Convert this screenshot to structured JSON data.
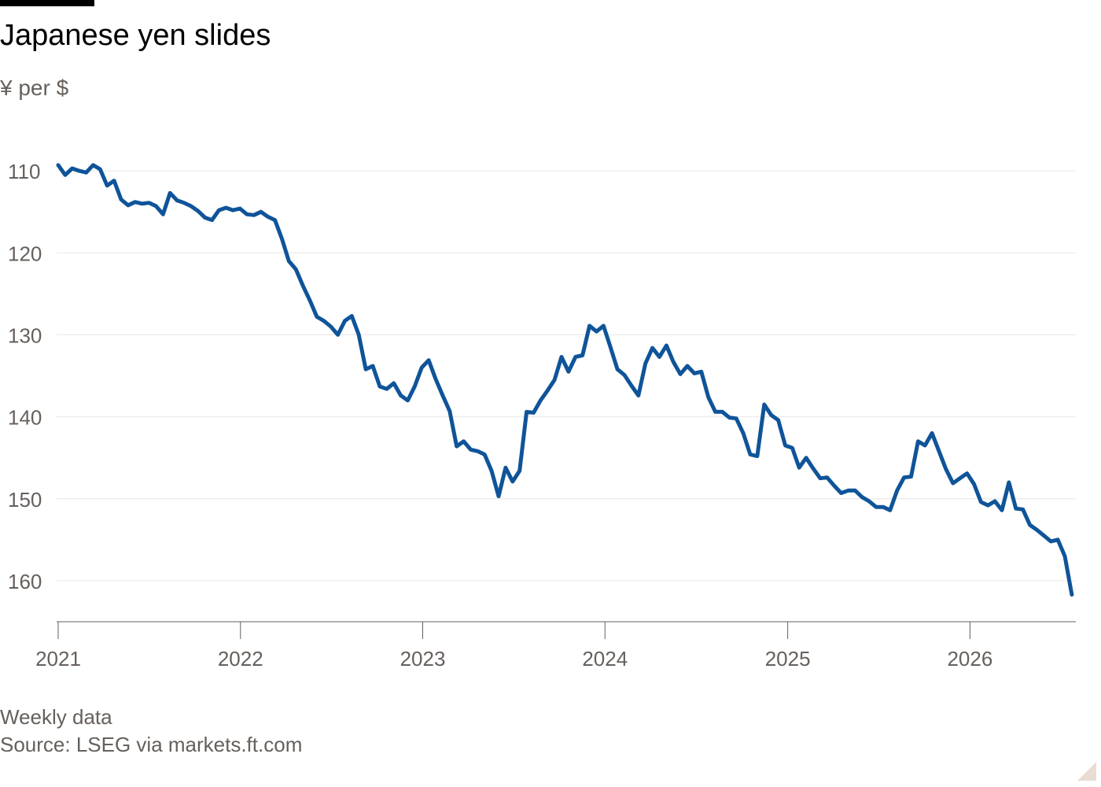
{
  "header": {
    "title": "Japanese yen slides",
    "subtitle": "¥ per $"
  },
  "footer": {
    "note": "Weekly data",
    "source": "Source: LSEG via markets.ft.com"
  },
  "colors": {
    "line": "#0f5499",
    "grid": "#e8e6e4",
    "axis_text": "#66605c",
    "baseline": "#66605c"
  },
  "chart_data": {
    "type": "line",
    "title": "Japanese yen slides",
    "ylabel": "¥ per $",
    "y_inverted": true,
    "ylim": [
      165,
      105
    ],
    "yticks": [
      110,
      120,
      130,
      140,
      150,
      160
    ],
    "xlim": [
      "2021-01-01",
      "2026-08-01"
    ],
    "xticks": [
      {
        "date": "2021-01-01",
        "label": "2021"
      },
      {
        "date": "2022-01-01",
        "label": "2022"
      },
      {
        "date": "2023-01-01",
        "label": "2023"
      },
      {
        "date": "2024-01-01",
        "label": "2024"
      },
      {
        "date": "2025-01-01",
        "label": "2025"
      },
      {
        "date": "2026-01-01",
        "label": "2026"
      }
    ],
    "grid": true,
    "legend": "none",
    "series": [
      {
        "points": [
          [
            "2021-01-01",
            109.3
          ],
          [
            "2021-01-15",
            110.5
          ],
          [
            "2021-01-29",
            109.7
          ],
          [
            "2021-02-12",
            110.0
          ],
          [
            "2021-02-26",
            110.2
          ],
          [
            "2021-03-12",
            109.3
          ],
          [
            "2021-03-26",
            109.8
          ],
          [
            "2021-04-09",
            111.8
          ],
          [
            "2021-04-23",
            111.2
          ],
          [
            "2021-05-07",
            113.5
          ],
          [
            "2021-05-21",
            114.2
          ],
          [
            "2021-06-04",
            113.8
          ],
          [
            "2021-06-18",
            114.0
          ],
          [
            "2021-07-02",
            113.9
          ],
          [
            "2021-07-16",
            114.3
          ],
          [
            "2021-07-30",
            115.3
          ],
          [
            "2021-08-13",
            112.7
          ],
          [
            "2021-08-27",
            113.6
          ],
          [
            "2021-09-10",
            113.9
          ],
          [
            "2021-09-24",
            114.3
          ],
          [
            "2021-10-08",
            114.9
          ],
          [
            "2021-10-22",
            115.7
          ],
          [
            "2021-11-05",
            116.0
          ],
          [
            "2021-11-19",
            114.8
          ],
          [
            "2021-12-03",
            114.5
          ],
          [
            "2021-12-17",
            114.8
          ],
          [
            "2021-12-31",
            114.6
          ],
          [
            "2022-01-14",
            115.3
          ],
          [
            "2022-01-28",
            115.4
          ],
          [
            "2022-02-11",
            115.0
          ],
          [
            "2022-02-25",
            115.6
          ],
          [
            "2022-03-11",
            116.0
          ],
          [
            "2022-03-25",
            118.3
          ],
          [
            "2022-04-08",
            121.0
          ],
          [
            "2022-04-22",
            122.0
          ],
          [
            "2022-05-06",
            124.0
          ],
          [
            "2022-05-20",
            125.8
          ],
          [
            "2022-06-03",
            127.8
          ],
          [
            "2022-06-17",
            128.3
          ],
          [
            "2022-07-01",
            129.0
          ],
          [
            "2022-07-15",
            130.0
          ],
          [
            "2022-07-29",
            128.3
          ],
          [
            "2022-08-12",
            127.7
          ],
          [
            "2022-08-26",
            130.0
          ],
          [
            "2022-09-09",
            134.2
          ],
          [
            "2022-09-23",
            133.8
          ],
          [
            "2022-10-07",
            136.3
          ],
          [
            "2022-10-21",
            136.6
          ],
          [
            "2022-11-04",
            135.9
          ],
          [
            "2022-11-18",
            137.4
          ],
          [
            "2022-12-02",
            138.0
          ],
          [
            "2022-12-16",
            136.3
          ],
          [
            "2022-12-30",
            134.0
          ],
          [
            "2023-01-13",
            133.1
          ],
          [
            "2023-01-27",
            135.4
          ],
          [
            "2023-02-10",
            137.4
          ],
          [
            "2023-02-24",
            139.3
          ],
          [
            "2023-03-10",
            143.6
          ],
          [
            "2023-03-24",
            143.0
          ],
          [
            "2023-04-07",
            144.0
          ],
          [
            "2023-04-21",
            144.2
          ],
          [
            "2023-05-05",
            144.6
          ],
          [
            "2023-05-19",
            146.6
          ],
          [
            "2023-06-02",
            149.7
          ],
          [
            "2023-06-16",
            146.2
          ],
          [
            "2023-06-30",
            147.9
          ],
          [
            "2023-07-14",
            146.6
          ],
          [
            "2023-07-28",
            139.4
          ],
          [
            "2023-08-11",
            139.5
          ],
          [
            "2023-08-25",
            138.0
          ],
          [
            "2023-09-08",
            136.8
          ],
          [
            "2023-09-22",
            135.5
          ],
          [
            "2023-10-06",
            132.7
          ],
          [
            "2023-10-20",
            134.5
          ],
          [
            "2023-11-03",
            132.7
          ],
          [
            "2023-11-17",
            132.5
          ],
          [
            "2023-12-01",
            128.9
          ],
          [
            "2023-12-15",
            129.6
          ],
          [
            "2023-12-29",
            128.9
          ],
          [
            "2024-01-12",
            131.5
          ],
          [
            "2024-01-26",
            134.2
          ],
          [
            "2024-02-09",
            134.9
          ],
          [
            "2024-02-23",
            136.2
          ],
          [
            "2024-03-08",
            137.4
          ],
          [
            "2024-03-22",
            133.5
          ],
          [
            "2024-04-05",
            131.6
          ],
          [
            "2024-04-19",
            132.7
          ],
          [
            "2024-05-03",
            131.3
          ],
          [
            "2024-05-17",
            133.3
          ],
          [
            "2024-05-31",
            134.8
          ],
          [
            "2024-06-14",
            133.8
          ],
          [
            "2024-06-28",
            134.7
          ],
          [
            "2024-07-12",
            134.5
          ],
          [
            "2024-07-26",
            137.6
          ],
          [
            "2024-08-09",
            139.4
          ],
          [
            "2024-08-23",
            139.4
          ],
          [
            "2024-09-06",
            140.1
          ],
          [
            "2024-09-20",
            140.2
          ],
          [
            "2024-10-04",
            142.0
          ],
          [
            "2024-10-18",
            144.6
          ],
          [
            "2024-11-01",
            144.8
          ],
          [
            "2024-11-15",
            138.5
          ],
          [
            "2024-11-29",
            139.8
          ],
          [
            "2024-12-13",
            140.4
          ],
          [
            "2024-12-27",
            143.5
          ],
          [
            "2025-01-10",
            143.8
          ],
          [
            "2025-01-24",
            146.2
          ],
          [
            "2025-02-07",
            145.0
          ],
          [
            "2025-02-21",
            146.3
          ],
          [
            "2025-03-07",
            147.5
          ],
          [
            "2025-03-21",
            147.4
          ],
          [
            "2025-04-04",
            148.4
          ],
          [
            "2025-04-18",
            149.3
          ],
          [
            "2025-05-02",
            149.0
          ],
          [
            "2025-05-16",
            149.0
          ],
          [
            "2025-05-30",
            149.8
          ],
          [
            "2025-06-13",
            150.3
          ],
          [
            "2025-06-27",
            151.0
          ],
          [
            "2025-07-11",
            151.0
          ],
          [
            "2025-07-25",
            151.4
          ],
          [
            "2025-08-08",
            149.0
          ],
          [
            "2025-08-22",
            147.4
          ],
          [
            "2025-09-05",
            147.3
          ],
          [
            "2025-09-19",
            143.0
          ],
          [
            "2025-10-03",
            143.5
          ],
          [
            "2025-10-17",
            142.0
          ],
          [
            "2025-10-31",
            144.2
          ],
          [
            "2025-11-14",
            146.4
          ],
          [
            "2025-11-28",
            148.1
          ],
          [
            "2025-12-12",
            147.5
          ],
          [
            "2025-12-26",
            146.9
          ],
          [
            "2026-01-09",
            148.2
          ],
          [
            "2026-01-23",
            150.4
          ],
          [
            "2026-02-06",
            150.8
          ],
          [
            "2026-02-20",
            150.3
          ],
          [
            "2026-03-06",
            151.4
          ],
          [
            "2026-03-20",
            148.0
          ],
          [
            "2026-04-03",
            151.2
          ],
          [
            "2026-04-17",
            151.3
          ],
          [
            "2026-05-01",
            153.2
          ],
          [
            "2026-05-15",
            153.8
          ],
          [
            "2026-05-29",
            154.5
          ],
          [
            "2026-06-12",
            155.2
          ],
          [
            "2026-06-26",
            155.0
          ],
          [
            "2026-07-10",
            157.0
          ],
          [
            "2026-07-24",
            161.7
          ]
        ]
      }
    ]
  }
}
